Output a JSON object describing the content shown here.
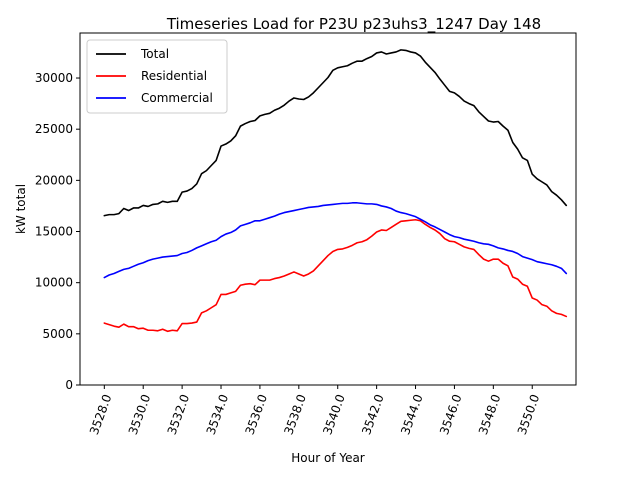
{
  "chart_data": {
    "type": "line",
    "title": "Timeseries Load for P23U p23uhs3_1247  Day 148",
    "xlabel": "Hour of Year",
    "ylabel": "kW total",
    "xlim": [
      3526.75,
      3552.25
    ],
    "ylim": [
      0,
      34400
    ],
    "x_ticks": [
      3528.0,
      3530.0,
      3532.0,
      3534.0,
      3536.0,
      3538.0,
      3540.0,
      3542.0,
      3544.0,
      3546.0,
      3548.0,
      3550.0
    ],
    "x_tick_labels": [
      "3528.0",
      "3530.0",
      "3532.0",
      "3534.0",
      "3536.0",
      "3538.0",
      "3540.0",
      "3542.0",
      "3544.0",
      "3546.0",
      "3548.0",
      "3550.0"
    ],
    "y_ticks": [
      0,
      5000,
      10000,
      15000,
      20000,
      25000,
      30000
    ],
    "y_tick_labels": [
      "0",
      "5000",
      "10000",
      "15000",
      "20000",
      "25000",
      "30000"
    ],
    "legend_position": "upper-left",
    "x": [
      3528.0,
      3528.25,
      3528.5,
      3528.75,
      3529.0,
      3529.25,
      3529.5,
      3529.75,
      3530.0,
      3530.25,
      3530.5,
      3530.75,
      3531.0,
      3531.25,
      3531.5,
      3531.75,
      3532.0,
      3532.25,
      3532.5,
      3532.75,
      3533.0,
      3533.25,
      3533.5,
      3533.75,
      3534.0,
      3534.25,
      3534.5,
      3534.75,
      3535.0,
      3535.25,
      3535.5,
      3535.75,
      3536.0,
      3536.25,
      3536.5,
      3536.75,
      3537.0,
      3537.25,
      3537.5,
      3537.75,
      3538.0,
      3538.25,
      3538.5,
      3538.75,
      3539.0,
      3539.25,
      3539.5,
      3539.75,
      3540.0,
      3540.25,
      3540.5,
      3540.75,
      3541.0,
      3541.25,
      3541.5,
      3541.75,
      3542.0,
      3542.25,
      3542.5,
      3542.75,
      3543.0,
      3543.25,
      3543.5,
      3543.75,
      3544.0,
      3544.25,
      3544.5,
      3544.75,
      3545.0,
      3545.25,
      3545.5,
      3545.75,
      3546.0,
      3546.25,
      3546.5,
      3546.75,
      3547.0,
      3547.25,
      3547.5,
      3547.75,
      3548.0,
      3548.25,
      3548.5,
      3548.75,
      3549.0,
      3549.25,
      3549.5,
      3549.75,
      3550.0,
      3550.25,
      3550.5,
      3550.75,
      3551.0,
      3551.25,
      3551.5,
      3551.75
    ],
    "series": [
      {
        "name": "Total",
        "color": "#000000",
        "values": [
          16550,
          16650,
          16650,
          16750,
          17250,
          17050,
          17300,
          17300,
          17550,
          17450,
          17650,
          17700,
          17950,
          17850,
          17950,
          17950,
          18850,
          18950,
          19200,
          19650,
          20650,
          20950,
          21450,
          21950,
          23350,
          23550,
          23850,
          24350,
          25300,
          25550,
          25750,
          25850,
          26300,
          26450,
          26550,
          26850,
          27050,
          27350,
          27750,
          28050,
          27950,
          27900,
          28150,
          28550,
          29050,
          29550,
          30050,
          30750,
          31000,
          31100,
          31200,
          31450,
          31650,
          31650,
          31900,
          32100,
          32450,
          32550,
          32350,
          32450,
          32550,
          32750,
          32700,
          32550,
          32450,
          32150,
          31550,
          31050,
          30550,
          29900,
          29300,
          28700,
          28550,
          28200,
          27750,
          27500,
          27300,
          26700,
          26250,
          25800,
          25700,
          25750,
          25300,
          24900,
          23700,
          23050,
          22200,
          21950,
          20600,
          20150,
          19850,
          19550,
          18900,
          18550,
          18100,
          17550
        ]
      },
      {
        "name": "Residential",
        "color": "#ff0000",
        "values": [
          6050,
          5900,
          5750,
          5650,
          5950,
          5700,
          5700,
          5500,
          5550,
          5350,
          5350,
          5300,
          5450,
          5250,
          5350,
          5300,
          6000,
          6000,
          6050,
          6150,
          7050,
          7250,
          7550,
          7850,
          8850,
          8850,
          9000,
          9150,
          9750,
          9850,
          9900,
          9800,
          10250,
          10250,
          10250,
          10400,
          10500,
          10650,
          10850,
          11050,
          10850,
          10650,
          10850,
          11150,
          11650,
          12150,
          12650,
          13050,
          13250,
          13300,
          13450,
          13650,
          13900,
          14000,
          14200,
          14550,
          14950,
          15150,
          15100,
          15400,
          15700,
          16000,
          16050,
          16100,
          16150,
          16050,
          15700,
          15400,
          15150,
          14800,
          14300,
          14050,
          14000,
          13750,
          13500,
          13350,
          13250,
          12750,
          12300,
          12100,
          12300,
          12300,
          11900,
          11650,
          10550,
          10350,
          9850,
          9650,
          8500,
          8300,
          7850,
          7700,
          7250,
          7000,
          6900,
          6700
        ]
      },
      {
        "name": "Commercial",
        "color": "#0000ff",
        "values": [
          10500,
          10750,
          10900,
          11100,
          11300,
          11400,
          11600,
          11800,
          11950,
          12150,
          12300,
          12400,
          12500,
          12550,
          12600,
          12650,
          12850,
          12950,
          13150,
          13400,
          13600,
          13800,
          14000,
          14150,
          14500,
          14750,
          14900,
          15150,
          15550,
          15700,
          15850,
          16050,
          16050,
          16200,
          16350,
          16500,
          16700,
          16850,
          16950,
          17050,
          17150,
          17250,
          17350,
          17400,
          17450,
          17550,
          17600,
          17650,
          17700,
          17750,
          17750,
          17800,
          17800,
          17750,
          17700,
          17700,
          17650,
          17500,
          17400,
          17250,
          17000,
          16850,
          16750,
          16600,
          16450,
          16200,
          15950,
          15650,
          15450,
          15200,
          14950,
          14700,
          14500,
          14400,
          14250,
          14150,
          14050,
          13900,
          13800,
          13750,
          13600,
          13400,
          13300,
          13150,
          13050,
          12850,
          12550,
          12400,
          12250,
          12050,
          11950,
          11850,
          11750,
          11600,
          11400,
          10900
        ]
      }
    ]
  }
}
